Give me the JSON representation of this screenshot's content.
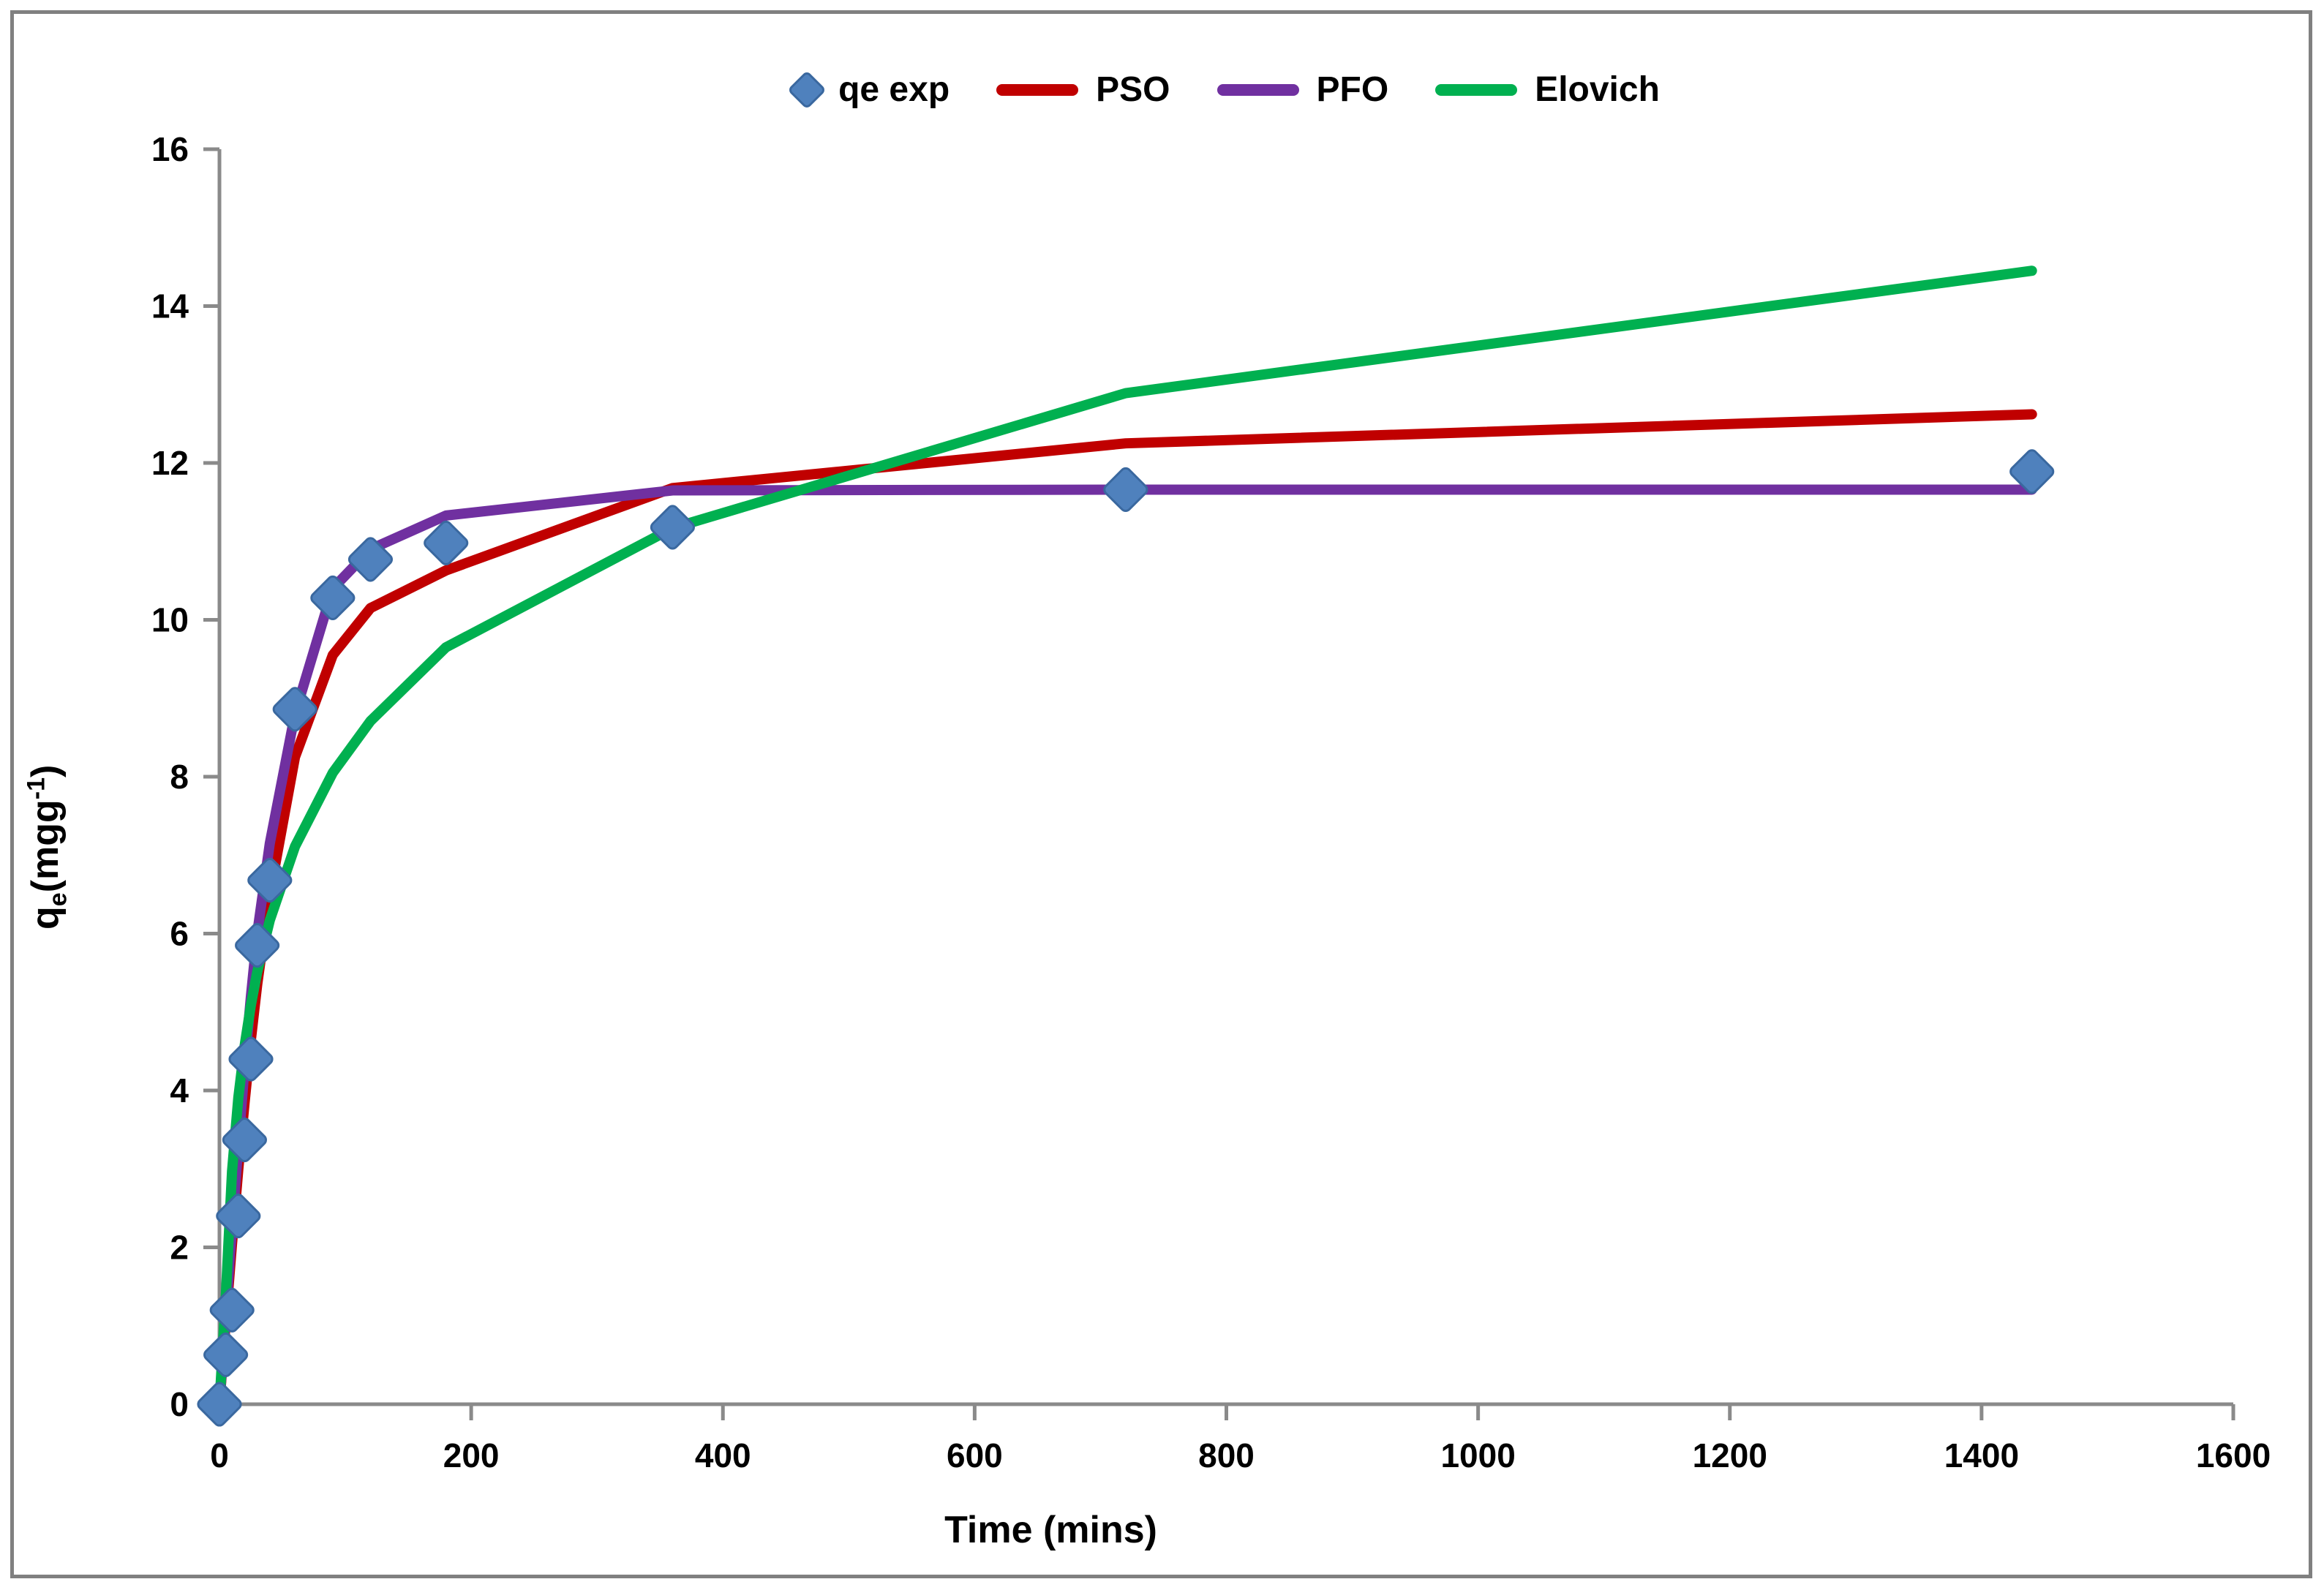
{
  "figure": {
    "background": "#FFFFFF",
    "border_color": "#808080"
  },
  "axes": {
    "axis_color": "#8A8A8A",
    "tick_label_color": "#000000",
    "x": {
      "title": "Time (mins)",
      "min": 0,
      "max": 1600,
      "ticks": [
        0,
        200,
        400,
        600,
        800,
        1000,
        1200,
        1400,
        1600
      ]
    },
    "y": {
      "title_parts": {
        "base": "q",
        "sub": "e",
        "mid": "(mgg",
        "sup": "-1",
        "end": ")"
      },
      "min": 0,
      "max": 16,
      "ticks": [
        0,
        2,
        4,
        6,
        8,
        10,
        12,
        14,
        16
      ]
    }
  },
  "legend": {
    "items": [
      {
        "label": "qe exp",
        "marker": "diamond",
        "color": "#4F81BD"
      },
      {
        "label": "PSO",
        "marker": "line",
        "color": "#C00000"
      },
      {
        "label": "PFO",
        "marker": "line",
        "color": "#7030A0"
      },
      {
        "label": "Elovich",
        "marker": "line",
        "color": "#00B050"
      }
    ]
  },
  "chart_data": {
    "type": "scatter",
    "title": "",
    "xlabel": "Time (mins)",
    "ylabel": "qe(mgg-1)",
    "xlim": [
      0,
      1600
    ],
    "ylim": [
      0,
      16
    ],
    "grid": false,
    "legend_position": "top-center",
    "series": [
      {
        "name": "qe exp",
        "type": "scatter",
        "marker": "diamond",
        "color": "#4F81BD",
        "edge_color": "#3A689F",
        "points": [
          [
            0,
            0
          ],
          [
            5,
            0.63
          ],
          [
            10,
            1.2
          ],
          [
            15,
            2.4
          ],
          [
            20,
            3.37
          ],
          [
            25,
            4.4
          ],
          [
            30,
            5.85
          ],
          [
            40,
            6.68
          ],
          [
            60,
            8.86
          ],
          [
            90,
            10.28
          ],
          [
            120,
            10.77
          ],
          [
            180,
            10.98
          ],
          [
            360,
            11.18
          ],
          [
            720,
            11.66
          ],
          [
            1440,
            11.89
          ]
        ]
      },
      {
        "name": "PSO",
        "type": "line",
        "color": "#C00000",
        "points": [
          [
            0,
            0
          ],
          [
            5,
            1.05
          ],
          [
            10,
            2.05
          ],
          [
            15,
            3.0
          ],
          [
            20,
            3.85
          ],
          [
            25,
            4.65
          ],
          [
            30,
            5.35
          ],
          [
            40,
            6.5
          ],
          [
            60,
            8.25
          ],
          [
            90,
            9.55
          ],
          [
            120,
            10.15
          ],
          [
            180,
            10.63
          ],
          [
            360,
            11.68
          ],
          [
            720,
            12.25
          ],
          [
            1440,
            12.62
          ]
        ]
      },
      {
        "name": "PFO",
        "type": "line",
        "color": "#7030A0",
        "points": [
          [
            0,
            0
          ],
          [
            5,
            1.15
          ],
          [
            10,
            2.25
          ],
          [
            15,
            3.3
          ],
          [
            20,
            4.3
          ],
          [
            25,
            5.2
          ],
          [
            30,
            6.0
          ],
          [
            40,
            7.15
          ],
          [
            60,
            8.8
          ],
          [
            90,
            10.4
          ],
          [
            120,
            10.9
          ],
          [
            180,
            11.33
          ],
          [
            360,
            11.65
          ],
          [
            720,
            11.66
          ],
          [
            1440,
            11.66
          ]
        ]
      },
      {
        "name": "Elovich",
        "type": "line",
        "color": "#00B050",
        "points": [
          [
            0,
            0
          ],
          [
            5,
            1.37
          ],
          [
            10,
            2.97
          ],
          [
            15,
            3.91
          ],
          [
            20,
            4.57
          ],
          [
            25,
            5.09
          ],
          [
            30,
            5.51
          ],
          [
            40,
            6.17
          ],
          [
            60,
            7.11
          ],
          [
            90,
            8.05
          ],
          [
            120,
            8.71
          ],
          [
            180,
            9.65
          ],
          [
            360,
            11.17
          ],
          [
            720,
            12.89
          ],
          [
            1440,
            14.45
          ]
        ]
      }
    ]
  }
}
